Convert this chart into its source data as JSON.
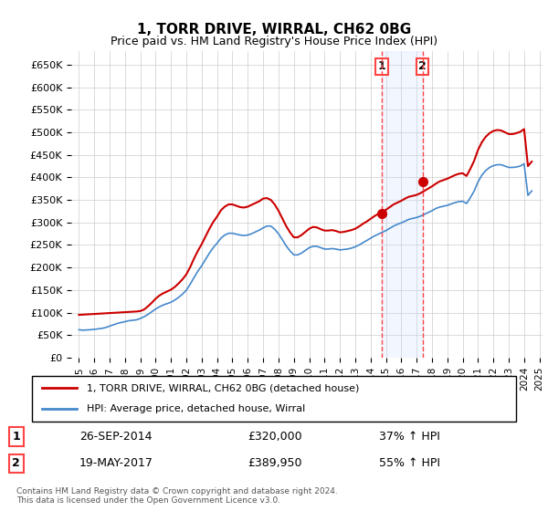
{
  "title": "1, TORR DRIVE, WIRRAL, CH62 0BG",
  "subtitle": "Price paid vs. HM Land Registry's House Price Index (HPI)",
  "ylim": [
    0,
    680000
  ],
  "yticks": [
    0,
    50000,
    100000,
    150000,
    200000,
    250000,
    300000,
    350000,
    400000,
    450000,
    500000,
    550000,
    600000,
    650000
  ],
  "ytick_labels": [
    "£0",
    "£50K",
    "£100K",
    "£150K",
    "£200K",
    "£250K",
    "£300K",
    "£350K",
    "£400K",
    "£450K",
    "£500K",
    "£550K",
    "£600K",
    "£650K"
  ],
  "transaction1_date": 2014.74,
  "transaction1_price": 320000,
  "transaction1_label": "26-SEP-2014",
  "transaction1_pct": "37% ↑ HPI",
  "transaction2_date": 2017.38,
  "transaction2_price": 389950,
  "transaction2_label": "19-MAY-2017",
  "transaction2_pct": "55% ↑ HPI",
  "line_color_property": "#cc0000",
  "line_color_hpi": "#4488cc",
  "vline_color": "#ff4444",
  "shading_color": "#cce0ff",
  "legend_label_property": "1, TORR DRIVE, WIRRAL, CH62 0BG (detached house)",
  "legend_label_hpi": "HPI: Average price, detached house, Wirral",
  "footnote": "Contains HM Land Registry data © Crown copyright and database right 2024.\nThis data is licensed under the Open Government Licence v3.0.",
  "hpi_data": {
    "years": [
      1995.0,
      1995.25,
      1995.5,
      1995.75,
      1996.0,
      1996.25,
      1996.5,
      1996.75,
      1997.0,
      1997.25,
      1997.5,
      1997.75,
      1998.0,
      1998.25,
      1998.5,
      1998.75,
      1999.0,
      1999.25,
      1999.5,
      1999.75,
      2000.0,
      2000.25,
      2000.5,
      2000.75,
      2001.0,
      2001.25,
      2001.5,
      2001.75,
      2002.0,
      2002.25,
      2002.5,
      2002.75,
      2003.0,
      2003.25,
      2003.5,
      2003.75,
      2004.0,
      2004.25,
      2004.5,
      2004.75,
      2005.0,
      2005.25,
      2005.5,
      2005.75,
      2006.0,
      2006.25,
      2006.5,
      2006.75,
      2007.0,
      2007.25,
      2007.5,
      2007.75,
      2008.0,
      2008.25,
      2008.5,
      2008.75,
      2009.0,
      2009.25,
      2009.5,
      2009.75,
      2010.0,
      2010.25,
      2010.5,
      2010.75,
      2011.0,
      2011.25,
      2011.5,
      2011.75,
      2012.0,
      2012.25,
      2012.5,
      2012.75,
      2013.0,
      2013.25,
      2013.5,
      2013.75,
      2014.0,
      2014.25,
      2014.5,
      2014.75,
      2015.0,
      2015.25,
      2015.5,
      2015.75,
      2016.0,
      2016.25,
      2016.5,
      2016.75,
      2017.0,
      2017.25,
      2017.5,
      2017.75,
      2018.0,
      2018.25,
      2018.5,
      2018.75,
      2019.0,
      2019.25,
      2019.5,
      2019.75,
      2020.0,
      2020.25,
      2020.5,
      2020.75,
      2021.0,
      2021.25,
      2021.5,
      2021.75,
      2022.0,
      2022.25,
      2022.5,
      2022.75,
      2023.0,
      2023.25,
      2023.5,
      2023.75,
      2024.0,
      2024.25,
      2024.5
    ],
    "values": [
      62000,
      61000,
      61500,
      62000,
      63000,
      64000,
      65000,
      67000,
      70000,
      73000,
      76000,
      78000,
      80000,
      82000,
      83000,
      84000,
      87000,
      91000,
      96000,
      102000,
      108000,
      113000,
      117000,
      120000,
      123000,
      128000,
      134000,
      141000,
      150000,
      163000,
      178000,
      192000,
      204000,
      218000,
      232000,
      244000,
      254000,
      265000,
      272000,
      276000,
      276000,
      274000,
      272000,
      271000,
      272000,
      275000,
      279000,
      283000,
      288000,
      292000,
      292000,
      285000,
      275000,
      262000,
      248000,
      237000,
      228000,
      228000,
      232000,
      238000,
      244000,
      247000,
      247000,
      244000,
      241000,
      241000,
      242000,
      241000,
      239000,
      240000,
      241000,
      243000,
      246000,
      250000,
      255000,
      260000,
      265000,
      270000,
      274000,
      278000,
      282000,
      287000,
      292000,
      296000,
      299000,
      303000,
      307000,
      309000,
      311000,
      314000,
      318000,
      322000,
      326000,
      331000,
      334000,
      336000,
      338000,
      341000,
      344000,
      346000,
      347000,
      342000,
      355000,
      370000,
      390000,
      405000,
      415000,
      422000,
      426000,
      428000,
      428000,
      425000,
      422000,
      422000,
      423000,
      425000,
      430000,
      360000,
      370000
    ]
  },
  "property_data": {
    "years": [
      1995.0,
      1995.25,
      1995.5,
      1995.75,
      1996.0,
      1996.25,
      1996.5,
      1996.75,
      1997.0,
      1997.25,
      1997.5,
      1997.75,
      1998.0,
      1998.25,
      1998.5,
      1998.75,
      1999.0,
      1999.25,
      1999.5,
      1999.75,
      2000.0,
      2000.25,
      2000.5,
      2000.75,
      2001.0,
      2001.25,
      2001.5,
      2001.75,
      2002.0,
      2002.25,
      2002.5,
      2002.75,
      2003.0,
      2003.25,
      2003.5,
      2003.75,
      2004.0,
      2004.25,
      2004.5,
      2004.75,
      2005.0,
      2005.25,
      2005.5,
      2005.75,
      2006.0,
      2006.25,
      2006.5,
      2006.75,
      2007.0,
      2007.25,
      2007.5,
      2007.75,
      2008.0,
      2008.25,
      2008.5,
      2008.75,
      2009.0,
      2009.25,
      2009.5,
      2009.75,
      2010.0,
      2010.25,
      2010.5,
      2010.75,
      2011.0,
      2011.25,
      2011.5,
      2011.75,
      2012.0,
      2012.25,
      2012.5,
      2012.75,
      2013.0,
      2013.25,
      2013.5,
      2013.75,
      2014.0,
      2014.25,
      2014.5,
      2014.75,
      2015.0,
      2015.25,
      2015.5,
      2015.75,
      2016.0,
      2016.25,
      2016.5,
      2016.75,
      2017.0,
      2017.25,
      2017.5,
      2017.75,
      2018.0,
      2018.25,
      2018.5,
      2018.75,
      2019.0,
      2019.25,
      2019.5,
      2019.75,
      2020.0,
      2020.25,
      2020.5,
      2020.75,
      2021.0,
      2021.25,
      2021.5,
      2021.75,
      2022.0,
      2022.25,
      2022.5,
      2022.75,
      2023.0,
      2023.25,
      2023.5,
      2023.75,
      2024.0,
      2024.25,
      2024.5
    ],
    "values": [
      95000,
      95500,
      96000,
      96500,
      97000,
      97500,
      98000,
      98500,
      99000,
      99500,
      100000,
      100500,
      101000,
      101500,
      102000,
      102500,
      103500,
      107000,
      114000,
      122000,
      131000,
      138000,
      143000,
      147000,
      151000,
      157000,
      165000,
      174000,
      185000,
      201000,
      220000,
      237000,
      252000,
      269000,
      286000,
      301000,
      313000,
      327000,
      335000,
      340000,
      340000,
      337000,
      334000,
      333000,
      335000,
      339000,
      343000,
      347000,
      353000,
      354000,
      350000,
      340000,
      326000,
      309000,
      292000,
      278000,
      267000,
      267000,
      272000,
      279000,
      286000,
      290000,
      289000,
      285000,
      282000,
      282000,
      283000,
      281000,
      278000,
      279000,
      281000,
      283000,
      286000,
      291000,
      297000,
      302000,
      308000,
      314000,
      319000,
      323000,
      328000,
      334000,
      340000,
      344000,
      348000,
      353000,
      357000,
      359000,
      361000,
      365000,
      370000,
      375000,
      380000,
      386000,
      391000,
      394000,
      397000,
      401000,
      405000,
      408000,
      409000,
      403000,
      419000,
      437000,
      461000,
      478000,
      490000,
      498000,
      503000,
      505000,
      504000,
      500000,
      496000,
      496000,
      498000,
      501000,
      507000,
      425000,
      435000
    ]
  }
}
